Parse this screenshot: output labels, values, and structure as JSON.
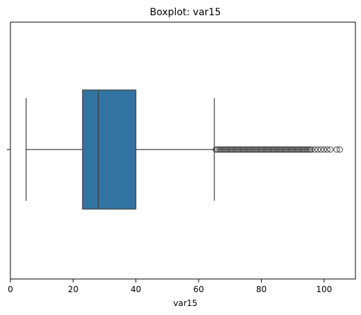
{
  "chart_data": {
    "type": "boxplot",
    "title": "Boxplot: var15",
    "xlabel": "var15",
    "ylabel": "",
    "xlim": [
      0,
      110
    ],
    "xticks": [
      0,
      20,
      40,
      60,
      80,
      100
    ],
    "xtick_labels": [
      "0",
      "20",
      "40",
      "60",
      "80",
      "100"
    ],
    "grid": false,
    "orientation": "horizontal",
    "box": {
      "whisker_low": 5,
      "q1": 23,
      "median": 28,
      "q3": 40,
      "whisker_high": 65
    },
    "outliers": [
      65.5,
      66,
      66.5,
      67,
      67.5,
      68,
      68.5,
      69,
      69.5,
      70,
      70.5,
      71,
      71.5,
      72,
      72.5,
      73,
      73.5,
      74,
      74.5,
      75,
      75.5,
      76,
      76.5,
      77,
      77.5,
      78,
      78.5,
      79,
      79.5,
      80,
      80.5,
      81,
      81.5,
      82,
      82.5,
      83,
      83.5,
      84,
      84.5,
      85,
      85.5,
      86,
      86.5,
      87,
      87.5,
      88,
      88.5,
      89,
      89.5,
      90,
      90.5,
      91,
      91.5,
      92,
      92.5,
      93,
      93.5,
      94,
      94.5,
      95,
      95.5,
      96,
      97,
      98,
      99,
      100,
      101,
      102,
      104,
      105
    ],
    "colors": {
      "box_fill": "#3274a1",
      "line": "#3d3d3d",
      "outlier_edge": "#3d3d3d"
    }
  }
}
